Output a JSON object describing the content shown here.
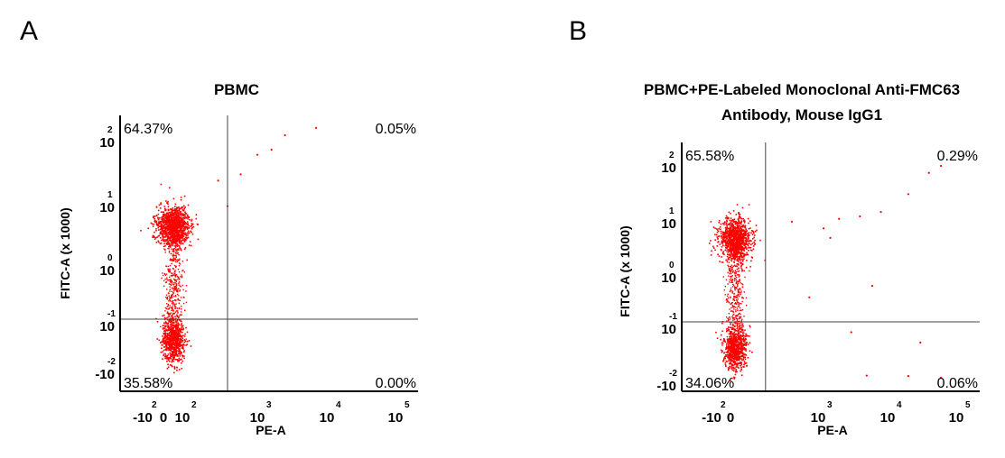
{
  "figure": {
    "panel_letters": [
      "A",
      "B"
    ]
  },
  "colors": {
    "events": "#ff0000",
    "axis": "#000000",
    "gate": "#444444"
  },
  "chart_data": [
    {
      "type": "scatter",
      "panel": "A",
      "title_lines": [
        "PBMC"
      ],
      "xlabel": "PE-A",
      "ylabel": "FITC-A (x 1000)",
      "x_scale": "biexponential",
      "y_scale": "biexponential",
      "x_ticks": [
        {
          "base": "-10",
          "exp": "2",
          "value": -100
        },
        {
          "base": "0",
          "exp": "",
          "value": 0
        },
        {
          "base": "10",
          "exp": "2",
          "value": 100
        },
        {
          "base": "10",
          "exp": "3",
          "value": 1000
        },
        {
          "base": "10",
          "exp": "4",
          "value": 10000
        },
        {
          "base": "10",
          "exp": "5",
          "value": 100000
        }
      ],
      "y_ticks": [
        {
          "base": "-10",
          "exp": "-2",
          "value": -0.01
        },
        {
          "base": "10",
          "exp": "-1",
          "value": 0.1
        },
        {
          "base": "10",
          "exp": "0",
          "value": 1
        },
        {
          "base": "10",
          "exp": "1",
          "value": 10
        },
        {
          "base": "10",
          "exp": "2",
          "value": 100
        }
      ],
      "quadrant_gate": {
        "x": 400,
        "y": 0.1
      },
      "quadrants": {
        "upper_left": "64.37%",
        "upper_right": "0.05%",
        "lower_left": "35.58%",
        "lower_right": "0.00%"
      },
      "populations": [
        {
          "name": "",
          "x_center": 50,
          "y_center": 4,
          "count": 1100
        },
        {
          "name": "",
          "x_center": 50,
          "y_center": 0.05,
          "count": 700
        }
      ],
      "sparse_events": [
        {
          "x": 300,
          "y": 20
        },
        {
          "x": 600,
          "y": 25
        },
        {
          "x": 1000,
          "y": 50
        },
        {
          "x": 1600,
          "y": 60
        },
        {
          "x": 2500,
          "y": 100
        },
        {
          "x": 7000,
          "y": 150
        },
        {
          "x": 400,
          "y": 8
        }
      ]
    },
    {
      "type": "scatter",
      "panel": "B",
      "title_lines": [
        "PBMC+PE-Labeled Monoclonal Anti-FMC63",
        "Antibody, Mouse IgG1"
      ],
      "xlabel": "PE-A",
      "ylabel": "FITC-A (x 1000)",
      "x_scale": "biexponential",
      "y_scale": "biexponential",
      "x_ticks": [
        {
          "base": "-10",
          "exp": "2",
          "value": -100
        },
        {
          "base": "0",
          "exp": "",
          "value": 0
        },
        {
          "base": "10",
          "exp": "3",
          "value": 1000
        },
        {
          "base": "10",
          "exp": "4",
          "value": 10000
        },
        {
          "base": "10",
          "exp": "5",
          "value": 100000
        }
      ],
      "y_ticks": [
        {
          "base": "-10",
          "exp": "-2",
          "value": -0.01
        },
        {
          "base": "10",
          "exp": "-1",
          "value": 0.1
        },
        {
          "base": "10",
          "exp": "0",
          "value": 1
        },
        {
          "base": "10",
          "exp": "1",
          "value": 10
        },
        {
          "base": "10",
          "exp": "2",
          "value": 100
        }
      ],
      "quadrant_gate": {
        "x": 400,
        "y": 0.1
      },
      "quadrants": {
        "upper_left": "65.58%",
        "upper_right": "0.29%",
        "lower_left": "34.06%",
        "lower_right": "0.06%"
      },
      "populations": [
        {
          "name": "",
          "x_center": 50,
          "y_center": 4,
          "count": 1000
        },
        {
          "name": "",
          "x_center": 50,
          "y_center": 0.05,
          "count": 700
        }
      ],
      "sparse_events": [
        {
          "x": 700,
          "y": 8
        },
        {
          "x": 1200,
          "y": 6
        },
        {
          "x": 2000,
          "y": 9
        },
        {
          "x": 4000,
          "y": 10
        },
        {
          "x": 8000,
          "y": 12
        },
        {
          "x": 20000,
          "y": 25
        },
        {
          "x": 40000,
          "y": 60
        },
        {
          "x": 60000,
          "y": 80
        },
        {
          "x": 3000,
          "y": 0.08
        },
        {
          "x": 30000,
          "y": 0.06
        },
        {
          "x": 20000,
          "y": -0.005
        },
        {
          "x": 5000,
          "y": -0.004
        },
        {
          "x": 60000,
          "y": -0.008
        },
        {
          "x": 900,
          "y": 0.3
        },
        {
          "x": 1500,
          "y": 4
        },
        {
          "x": 6000,
          "y": 0.5
        }
      ]
    }
  ]
}
